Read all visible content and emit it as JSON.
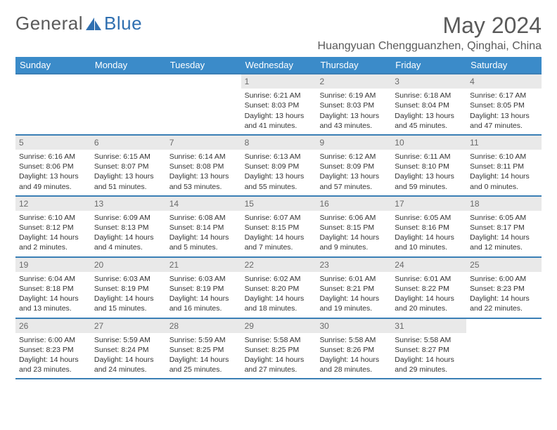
{
  "brand": {
    "part1": "General",
    "part2": "Blue"
  },
  "title": "May 2024",
  "location": "Huangyuan Chengguanzhen, Qinghai, China",
  "colors": {
    "header_bg": "#3b8bc9",
    "header_text": "#ffffff",
    "rule": "#3b7fb5",
    "datebar_bg": "#e9e9e9",
    "datebar_text": "#6a6a6a",
    "body_text": "#333333",
    "page_bg": "#ffffff",
    "logo_gray": "#5a5a5a",
    "logo_blue": "#2f6fb0"
  },
  "day_names": [
    "Sunday",
    "Monday",
    "Tuesday",
    "Wednesday",
    "Thursday",
    "Friday",
    "Saturday"
  ],
  "weeks": [
    [
      null,
      null,
      null,
      {
        "d": "1",
        "sr": "6:21 AM",
        "ss": "8:03 PM",
        "dl": "13 hours and 41 minutes."
      },
      {
        "d": "2",
        "sr": "6:19 AM",
        "ss": "8:03 PM",
        "dl": "13 hours and 43 minutes."
      },
      {
        "d": "3",
        "sr": "6:18 AM",
        "ss": "8:04 PM",
        "dl": "13 hours and 45 minutes."
      },
      {
        "d": "4",
        "sr": "6:17 AM",
        "ss": "8:05 PM",
        "dl": "13 hours and 47 minutes."
      }
    ],
    [
      {
        "d": "5",
        "sr": "6:16 AM",
        "ss": "8:06 PM",
        "dl": "13 hours and 49 minutes."
      },
      {
        "d": "6",
        "sr": "6:15 AM",
        "ss": "8:07 PM",
        "dl": "13 hours and 51 minutes."
      },
      {
        "d": "7",
        "sr": "6:14 AM",
        "ss": "8:08 PM",
        "dl": "13 hours and 53 minutes."
      },
      {
        "d": "8",
        "sr": "6:13 AM",
        "ss": "8:09 PM",
        "dl": "13 hours and 55 minutes."
      },
      {
        "d": "9",
        "sr": "6:12 AM",
        "ss": "8:09 PM",
        "dl": "13 hours and 57 minutes."
      },
      {
        "d": "10",
        "sr": "6:11 AM",
        "ss": "8:10 PM",
        "dl": "13 hours and 59 minutes."
      },
      {
        "d": "11",
        "sr": "6:10 AM",
        "ss": "8:11 PM",
        "dl": "14 hours and 0 minutes."
      }
    ],
    [
      {
        "d": "12",
        "sr": "6:10 AM",
        "ss": "8:12 PM",
        "dl": "14 hours and 2 minutes."
      },
      {
        "d": "13",
        "sr": "6:09 AM",
        "ss": "8:13 PM",
        "dl": "14 hours and 4 minutes."
      },
      {
        "d": "14",
        "sr": "6:08 AM",
        "ss": "8:14 PM",
        "dl": "14 hours and 5 minutes."
      },
      {
        "d": "15",
        "sr": "6:07 AM",
        "ss": "8:15 PM",
        "dl": "14 hours and 7 minutes."
      },
      {
        "d": "16",
        "sr": "6:06 AM",
        "ss": "8:15 PM",
        "dl": "14 hours and 9 minutes."
      },
      {
        "d": "17",
        "sr": "6:05 AM",
        "ss": "8:16 PM",
        "dl": "14 hours and 10 minutes."
      },
      {
        "d": "18",
        "sr": "6:05 AM",
        "ss": "8:17 PM",
        "dl": "14 hours and 12 minutes."
      }
    ],
    [
      {
        "d": "19",
        "sr": "6:04 AM",
        "ss": "8:18 PM",
        "dl": "14 hours and 13 minutes."
      },
      {
        "d": "20",
        "sr": "6:03 AM",
        "ss": "8:19 PM",
        "dl": "14 hours and 15 minutes."
      },
      {
        "d": "21",
        "sr": "6:03 AM",
        "ss": "8:19 PM",
        "dl": "14 hours and 16 minutes."
      },
      {
        "d": "22",
        "sr": "6:02 AM",
        "ss": "8:20 PM",
        "dl": "14 hours and 18 minutes."
      },
      {
        "d": "23",
        "sr": "6:01 AM",
        "ss": "8:21 PM",
        "dl": "14 hours and 19 minutes."
      },
      {
        "d": "24",
        "sr": "6:01 AM",
        "ss": "8:22 PM",
        "dl": "14 hours and 20 minutes."
      },
      {
        "d": "25",
        "sr": "6:00 AM",
        "ss": "8:23 PM",
        "dl": "14 hours and 22 minutes."
      }
    ],
    [
      {
        "d": "26",
        "sr": "6:00 AM",
        "ss": "8:23 PM",
        "dl": "14 hours and 23 minutes."
      },
      {
        "d": "27",
        "sr": "5:59 AM",
        "ss": "8:24 PM",
        "dl": "14 hours and 24 minutes."
      },
      {
        "d": "28",
        "sr": "5:59 AM",
        "ss": "8:25 PM",
        "dl": "14 hours and 25 minutes."
      },
      {
        "d": "29",
        "sr": "5:58 AM",
        "ss": "8:25 PM",
        "dl": "14 hours and 27 minutes."
      },
      {
        "d": "30",
        "sr": "5:58 AM",
        "ss": "8:26 PM",
        "dl": "14 hours and 28 minutes."
      },
      {
        "d": "31",
        "sr": "5:58 AM",
        "ss": "8:27 PM",
        "dl": "14 hours and 29 minutes."
      },
      null
    ]
  ],
  "labels": {
    "sunrise": "Sunrise: ",
    "sunset": "Sunset: ",
    "daylight": "Daylight: "
  }
}
